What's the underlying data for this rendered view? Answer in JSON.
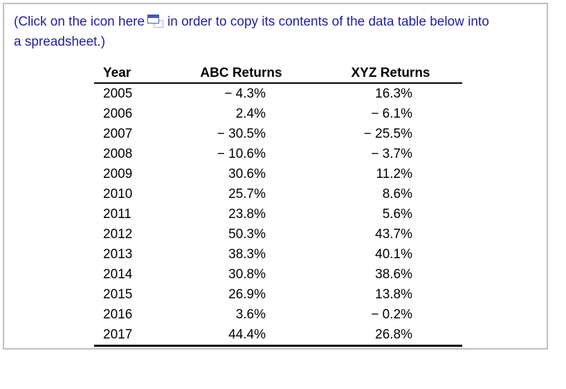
{
  "instruction": {
    "before_icon": "(Click on the icon here",
    "after_icon": "in order to copy its contents of the data table below into",
    "line2": "a spreadsheet.)",
    "icon": "copy-window-icon"
  },
  "table": {
    "columns": [
      "Year",
      "ABC Returns",
      "XYZ Returns"
    ],
    "rows": [
      [
        "2005",
        "− 4.3%",
        "16.3%"
      ],
      [
        "2006",
        "2.4%",
        "− 6.1%"
      ],
      [
        "2007",
        "− 30.5%",
        "− 25.5%"
      ],
      [
        "2008",
        "− 10.6%",
        "− 3.7%"
      ],
      [
        "2009",
        "30.6%",
        "11.2%"
      ],
      [
        "2010",
        "25.7%",
        "8.6%"
      ],
      [
        "2011",
        "23.8%",
        "5.6%"
      ],
      [
        "2012",
        "50.3%",
        "43.7%"
      ],
      [
        "2013",
        "38.3%",
        "40.1%"
      ],
      [
        "2014",
        "30.8%",
        "38.6%"
      ],
      [
        "2015",
        "26.9%",
        "13.8%"
      ],
      [
        "2016",
        "3.6%",
        "− 0.2%"
      ],
      [
        "2017",
        "44.4%",
        "26.8%"
      ]
    ]
  },
  "colors": {
    "instruction_text": "#1f1f9f",
    "table_text": "#000000",
    "frame_border": "#bfbfbf",
    "icon_front": "#4556ad",
    "icon_back": "#a9b2d6"
  }
}
